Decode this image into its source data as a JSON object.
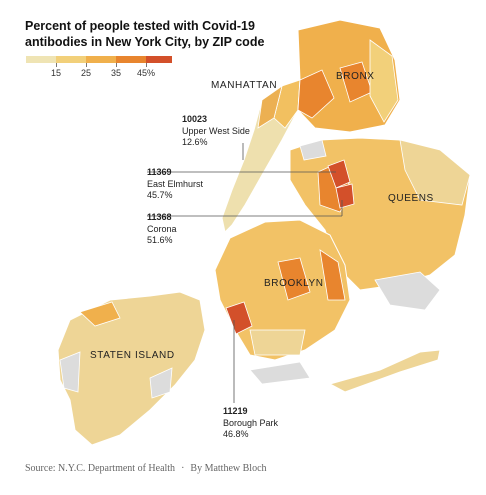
{
  "title": "Percent of people tested with Covid-19 antibodies in New York City, by ZIP code",
  "legend": {
    "labels": [
      "15",
      "25",
      "35",
      "45%"
    ],
    "colors": [
      "#efe4b4",
      "#f2d07a",
      "#f0b04c",
      "#e8852e",
      "#d3502a"
    ]
  },
  "regions": {
    "manhattan": "MANHATTAN",
    "bronx": "BRONX",
    "queens": "QUEENS",
    "brooklyn": "BROOKLYN",
    "staten_island": "STATEN ISLAND"
  },
  "callouts": [
    {
      "zip": "10023",
      "name": "Upper West Side",
      "value": "12.6%"
    },
    {
      "zip": "11369",
      "name": "East Elmhurst",
      "value": "45.7%"
    },
    {
      "zip": "11368",
      "name": "Corona",
      "value": "51.6%"
    },
    {
      "zip": "11219",
      "name": "Borough Park",
      "value": "46.8%"
    }
  ],
  "source": {
    "text": "Source: N.Y.C. Department of Health",
    "byline": "By Matthew Bloch"
  },
  "colors": {
    "water": "#ffffff",
    "no_data": "#dcdcdc",
    "low": "#efe4b4",
    "mid_low": "#f2d07a",
    "mid": "#f0b04c",
    "high": "#e8852e",
    "highest": "#d3502a"
  }
}
